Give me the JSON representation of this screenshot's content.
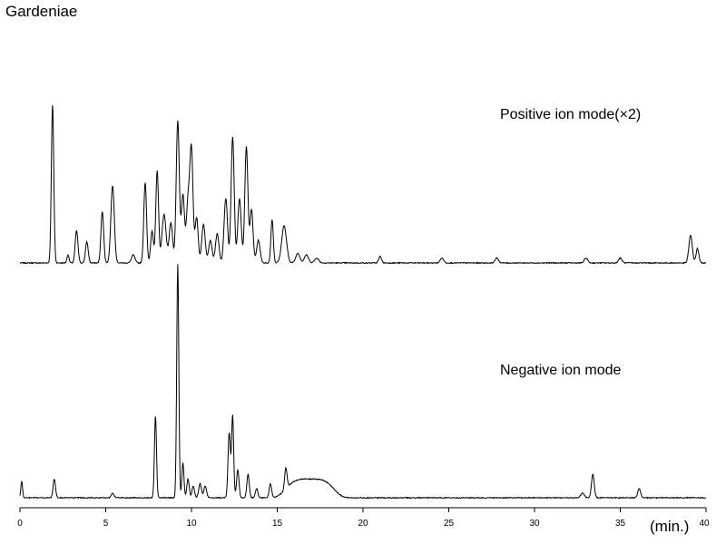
{
  "title": "Gardeniae",
  "chart_data": {
    "type": "line",
    "xlabel": "(min.)",
    "xlim": [
      0,
      40
    ],
    "xticks": [
      0,
      5,
      10,
      15,
      20,
      25,
      30,
      35,
      40
    ],
    "grid": false,
    "series": [
      {
        "name": "Positive ion mode(×2)",
        "color": "#000000",
        "baseline": 0.02,
        "noise": 0.006,
        "drift": [
          [
            0,
            0.0
          ],
          [
            17,
            0.0
          ],
          [
            40,
            0.0
          ]
        ],
        "hump": null,
        "peaks": [
          [
            1.9,
            0.98,
            0.07
          ],
          [
            2.8,
            0.05,
            0.06
          ],
          [
            3.3,
            0.2,
            0.08
          ],
          [
            3.9,
            0.13,
            0.08
          ],
          [
            4.8,
            0.32,
            0.08
          ],
          [
            5.4,
            0.48,
            0.1
          ],
          [
            6.6,
            0.05,
            0.1
          ],
          [
            7.3,
            0.5,
            0.08
          ],
          [
            7.7,
            0.2,
            0.08
          ],
          [
            8.0,
            0.57,
            0.08
          ],
          [
            8.4,
            0.3,
            0.12
          ],
          [
            8.8,
            0.25,
            0.1
          ],
          [
            9.2,
            0.88,
            0.09
          ],
          [
            9.5,
            0.42,
            0.09
          ],
          [
            9.8,
            0.38,
            0.1
          ],
          [
            10.0,
            0.68,
            0.09
          ],
          [
            10.3,
            0.28,
            0.09
          ],
          [
            10.7,
            0.24,
            0.1
          ],
          [
            11.1,
            0.14,
            0.1
          ],
          [
            11.5,
            0.18,
            0.1
          ],
          [
            12.0,
            0.4,
            0.1
          ],
          [
            12.4,
            0.78,
            0.09
          ],
          [
            12.8,
            0.4,
            0.1
          ],
          [
            13.2,
            0.72,
            0.09
          ],
          [
            13.5,
            0.33,
            0.09
          ],
          [
            13.9,
            0.14,
            0.1
          ],
          [
            14.7,
            0.27,
            0.07
          ],
          [
            15.4,
            0.23,
            0.14
          ],
          [
            16.2,
            0.06,
            0.12
          ],
          [
            16.7,
            0.05,
            0.12
          ],
          [
            17.3,
            0.03,
            0.12
          ],
          [
            21.0,
            0.04,
            0.08
          ],
          [
            24.6,
            0.03,
            0.1
          ],
          [
            27.8,
            0.03,
            0.1
          ],
          [
            33.0,
            0.03,
            0.1
          ],
          [
            35.0,
            0.03,
            0.1
          ],
          [
            39.1,
            0.17,
            0.1
          ],
          [
            39.5,
            0.09,
            0.08
          ]
        ]
      },
      {
        "name": "Negative ion mode",
        "color": "#000000",
        "baseline": 0.02,
        "noise": 0.004,
        "hump": [
          16.9,
          0.08,
          0.9
        ],
        "peaks": [
          [
            0.1,
            0.07,
            0.05
          ],
          [
            2.0,
            0.08,
            0.07
          ],
          [
            5.4,
            0.02,
            0.08
          ],
          [
            7.9,
            0.35,
            0.06
          ],
          [
            9.2,
            1.0,
            0.06
          ],
          [
            9.5,
            0.15,
            0.06
          ],
          [
            9.8,
            0.08,
            0.07
          ],
          [
            10.1,
            0.05,
            0.07
          ],
          [
            10.5,
            0.06,
            0.08
          ],
          [
            10.8,
            0.05,
            0.08
          ],
          [
            12.2,
            0.28,
            0.07
          ],
          [
            12.4,
            0.35,
            0.06
          ],
          [
            12.7,
            0.12,
            0.07
          ],
          [
            13.3,
            0.1,
            0.07
          ],
          [
            13.8,
            0.04,
            0.07
          ],
          [
            14.6,
            0.06,
            0.07
          ],
          [
            15.5,
            0.09,
            0.07
          ],
          [
            33.4,
            0.1,
            0.08
          ],
          [
            32.8,
            0.02,
            0.1
          ],
          [
            36.1,
            0.04,
            0.08
          ]
        ]
      }
    ]
  }
}
